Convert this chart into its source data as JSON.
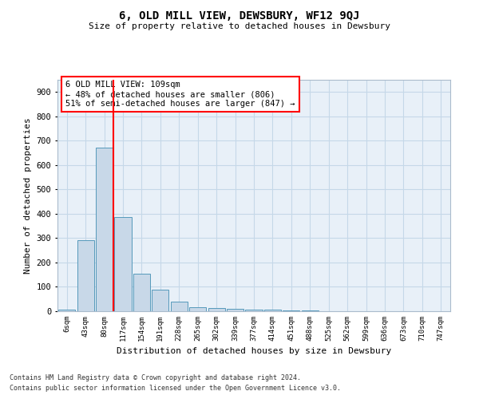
{
  "title": "6, OLD MILL VIEW, DEWSBURY, WF12 9QJ",
  "subtitle": "Size of property relative to detached houses in Dewsbury",
  "xlabel": "Distribution of detached houses by size in Dewsbury",
  "ylabel": "Number of detached properties",
  "bar_labels": [
    "6sqm",
    "43sqm",
    "80sqm",
    "117sqm",
    "154sqm",
    "191sqm",
    "228sqm",
    "265sqm",
    "302sqm",
    "339sqm",
    "377sqm",
    "414sqm",
    "451sqm",
    "488sqm",
    "525sqm",
    "562sqm",
    "599sqm",
    "636sqm",
    "673sqm",
    "710sqm",
    "747sqm"
  ],
  "bar_values": [
    8,
    293,
    672,
    385,
    153,
    87,
    38,
    15,
    12,
    10,
    8,
    5,
    3,
    2,
    1,
    1,
    0,
    0,
    0,
    0,
    0
  ],
  "bar_color": "#c8d8e8",
  "bar_edge_color": "#5599bb",
  "grid_color": "#c5d8e8",
  "background_color": "#e8f0f8",
  "red_line_x": 2.5,
  "annotation_text": "6 OLD MILL VIEW: 109sqm\n← 48% of detached houses are smaller (806)\n51% of semi-detached houses are larger (847) →",
  "annotation_box_color": "white",
  "annotation_box_edge": "red",
  "ylim": [
    0,
    950
  ],
  "yticks": [
    0,
    100,
    200,
    300,
    400,
    500,
    600,
    700,
    800,
    900
  ],
  "footer_line1": "Contains HM Land Registry data © Crown copyright and database right 2024.",
  "footer_line2": "Contains public sector information licensed under the Open Government Licence v3.0."
}
